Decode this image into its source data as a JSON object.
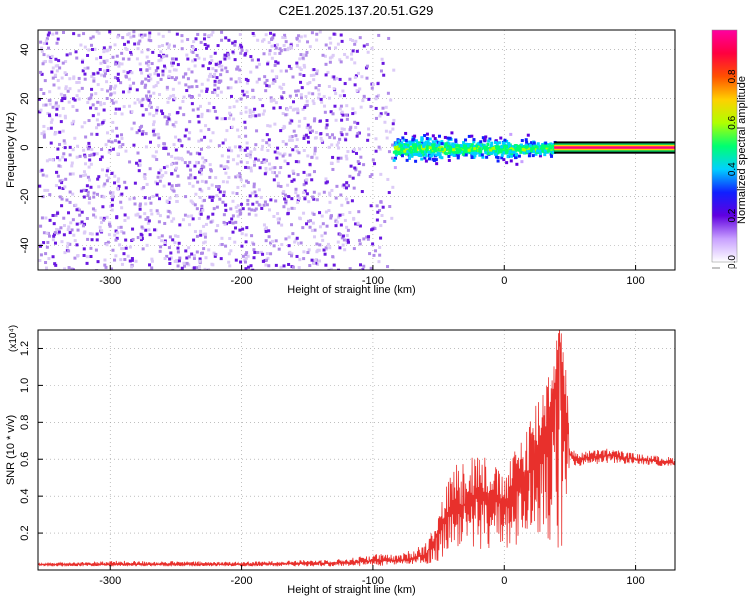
{
  "title": "C2E1.2025.137.20.51.G29",
  "colors": {
    "snr_line": "#e8302c",
    "scatter_low": "#c9b0f0",
    "scatter_mid": "#6a10e0",
    "black_line": "#000000"
  },
  "chart_data": [
    {
      "type": "heatmap",
      "xlabel": "Height of straight line (km)",
      "ylabel": "Frequency (Hz)",
      "xlim": [
        -355,
        130
      ],
      "ylim": [
        -50,
        48
      ],
      "xticks": [
        -300,
        -200,
        -100,
        0,
        100
      ],
      "yticks": [
        -40,
        -20,
        0,
        20,
        40
      ],
      "colorbar": {
        "label": "Normalized spectral amplitude",
        "range": [
          0,
          1
        ],
        "ticks": [
          0.0,
          0.2,
          0.4,
          0.6,
          0.8
        ],
        "tick_labels": [
          "0.0",
          "0.2",
          "0.4",
          "0.6",
          "0.8"
        ],
        "colormap": [
          "#ffffff",
          "#c8a0ff",
          "#6000e0",
          "#1020ff",
          "#00d0ff",
          "#00ff70",
          "#b0ff00",
          "#ffd000",
          "#ff5000",
          "#ff0040",
          "#ff00a0"
        ]
      },
      "regions": [
        {
          "x_range": [
            -355,
            -85
          ],
          "freq_spread": [
            -50,
            48
          ],
          "amplitude": "low (0.0-0.15)"
        },
        {
          "x_range": [
            -85,
            38
          ],
          "freq_center": 0,
          "freq_spread": [
            -10,
            10
          ],
          "amplitude": "0.1-0.6"
        },
        {
          "x_range": [
            38,
            130
          ],
          "freq_center": 0,
          "freq_spread": [
            -1,
            1
          ],
          "amplitude": "up to 1.0"
        }
      ],
      "grid": true
    },
    {
      "type": "line",
      "xlabel": "Height of straight line (km)",
      "ylabel": "SNR (10 * v/v)",
      "y_multiplier": "(x10⁴)",
      "xlim": [
        -355,
        130
      ],
      "ylim": [
        0,
        1.3
      ],
      "xticks": [
        -300,
        -200,
        -100,
        0,
        100
      ],
      "yticks": [
        0.2,
        0.4,
        0.6,
        0.8,
        1.0,
        1.2
      ],
      "ytick_labels": [
        "0.2",
        "0.4",
        "0.6",
        "0.8",
        "1.0",
        "1.2"
      ],
      "series": [
        {
          "x": [
            -355,
            -300,
            -200,
            -120,
            -100,
            -80,
            -60,
            -50,
            -40,
            -30,
            -20,
            -10,
            0,
            10,
            20,
            30,
            38,
            42,
            45,
            48,
            50,
            55,
            80,
            100,
            130
          ],
          "values": [
            0.03,
            0.03,
            0.03,
            0.04,
            0.05,
            0.05,
            0.08,
            0.2,
            0.35,
            0.35,
            0.4,
            0.4,
            0.35,
            0.45,
            0.55,
            0.7,
            0.95,
            1.3,
            1.0,
            0.8,
            0.62,
            0.6,
            0.62,
            0.6,
            0.58
          ],
          "envelope_top": [
            0.035,
            0.05,
            0.045,
            0.06,
            0.09,
            0.08,
            0.15,
            0.32,
            0.55,
            0.65,
            0.65,
            0.6,
            0.5,
            0.7,
            0.85,
            1.05,
            1.2,
            1.33,
            1.25,
            1.0,
            0.66,
            0.64,
            0.66,
            0.63,
            0.61
          ],
          "envelope_bottom": [
            0.02,
            0.02,
            0.02,
            0.02,
            0.02,
            0.03,
            0.03,
            0.05,
            0.1,
            0.15,
            0.1,
            0.12,
            0.1,
            0.1,
            0.15,
            0.2,
            0.1,
            0.1,
            0.05,
            0.1,
            0.58,
            0.56,
            0.58,
            0.57,
            0.56
          ]
        }
      ],
      "grid": true
    }
  ]
}
